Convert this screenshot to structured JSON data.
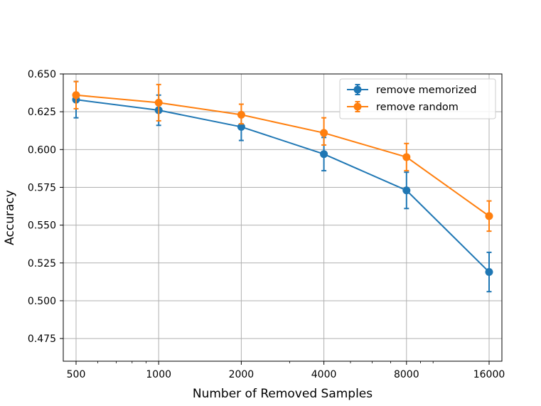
{
  "chart_data": {
    "type": "line",
    "title": "",
    "xlabel": "Number of Removed Samples",
    "ylabel": "Accuracy",
    "x_scale": "log2",
    "categories": [
      "500",
      "1000",
      "2000",
      "4000",
      "8000",
      "16000"
    ],
    "x": [
      500,
      1000,
      2000,
      4000,
      8000,
      16000
    ],
    "ylim": [
      0.46,
      0.65
    ],
    "yticks": [
      0.475,
      0.5,
      0.525,
      0.55,
      0.575,
      0.6,
      0.625,
      0.65
    ],
    "ytick_labels": [
      "0.475",
      "0.500",
      "0.525",
      "0.550",
      "0.575",
      "0.600",
      "0.625",
      "0.650"
    ],
    "grid": true,
    "legend_position": "top-right",
    "series": [
      {
        "name": "remove memorized",
        "color": "#1f77b4",
        "values": [
          0.633,
          0.626,
          0.615,
          0.597,
          0.573,
          0.519
        ],
        "err_low": [
          0.621,
          0.616,
          0.606,
          0.586,
          0.561,
          0.506
        ],
        "err_high": [
          0.645,
          0.636,
          0.624,
          0.608,
          0.585,
          0.532
        ]
      },
      {
        "name": "remove random",
        "color": "#ff7f0e",
        "values": [
          0.636,
          0.631,
          0.623,
          0.611,
          0.595,
          0.556
        ],
        "err_low": [
          0.627,
          0.619,
          0.617,
          0.603,
          0.586,
          0.546
        ],
        "err_high": [
          0.645,
          0.643,
          0.63,
          0.621,
          0.604,
          0.566
        ]
      }
    ]
  }
}
